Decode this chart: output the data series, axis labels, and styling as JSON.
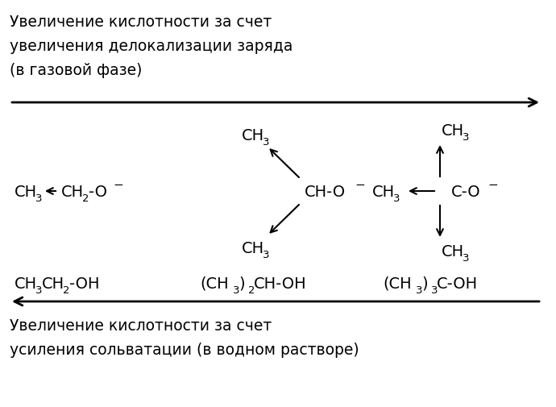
{
  "bg_color": "#ffffff",
  "text_color": "#000000",
  "title_top_line1": "Увеличение кислотности за счет",
  "title_top_line2": "увеличения делокализации заряда",
  "title_top_line3": "(в газовой фазе)",
  "title_bottom_line1": "Увеличение кислотности за счет",
  "title_bottom_line2": "усиления сольватации (в водном растворе)",
  "figsize": [
    6.9,
    5.06
  ],
  "dpi": 100,
  "fs_main": 14,
  "fs_sub": 9.5,
  "fs_title": 13.5
}
